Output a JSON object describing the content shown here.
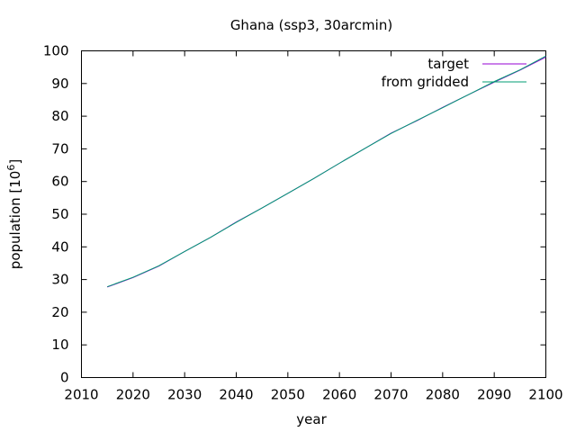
{
  "chart_data": {
    "type": "line",
    "title": "Ghana (ssp3, 30arcmin)",
    "xlabel": "year",
    "ylabel": "population [10",
    "ylabel_superscript": "6",
    "ylabel_suffix": "]",
    "xlim": [
      2010,
      2100
    ],
    "ylim": [
      0,
      100
    ],
    "xticks": [
      "2010",
      "2020",
      "2030",
      "2040",
      "2050",
      "2060",
      "2070",
      "2080",
      "2090",
      "2100"
    ],
    "yticks": [
      "0",
      "10",
      "20",
      "30",
      "40",
      "50",
      "60",
      "70",
      "80",
      "90",
      "100"
    ],
    "grid": false,
    "legend_position": "top-right",
    "series": [
      {
        "name": "target",
        "color": "#9400d3",
        "x": [
          2015,
          2020,
          2025,
          2030,
          2035,
          2040,
          2045,
          2050,
          2055,
          2060,
          2065,
          2070,
          2075,
          2080,
          2085,
          2090,
          2095,
          2100
        ],
        "y": [
          27.7,
          30.6,
          34.1,
          38.6,
          42.9,
          47.6,
          51.9,
          56.4,
          60.9,
          65.6,
          70.2,
          74.8,
          78.6,
          82.7,
          86.6,
          90.4,
          94.1,
          98.1
        ]
      },
      {
        "name": "from gridded",
        "color": "#009e73",
        "x": [
          2015,
          2020,
          2025,
          2030,
          2035,
          2040,
          2045,
          2050,
          2055,
          2060,
          2065,
          2070,
          2075,
          2080,
          2085,
          2090,
          2095,
          2100
        ],
        "y": [
          27.8,
          30.7,
          34.2,
          38.6,
          42.9,
          47.5,
          51.9,
          56.4,
          60.9,
          65.6,
          70.2,
          74.7,
          78.7,
          82.6,
          86.6,
          90.6,
          94.2,
          98.4
        ]
      }
    ]
  }
}
